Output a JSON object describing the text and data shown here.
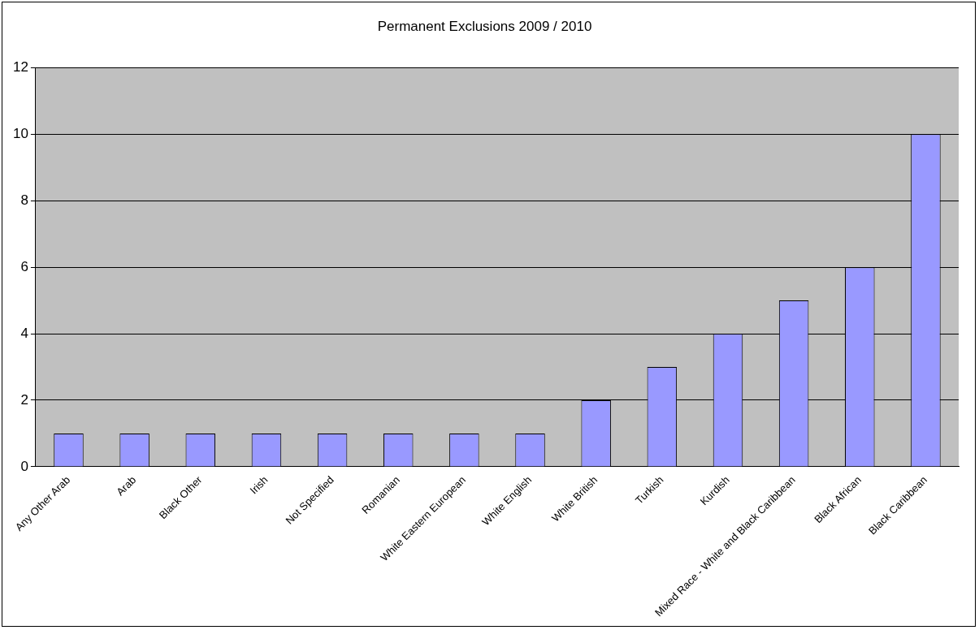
{
  "chart_data": {
    "type": "bar",
    "title": "Permanent Exclusions 2009 / 2010",
    "categories": [
      "Any Other Arab",
      "Arab",
      "Black Other",
      "Irish",
      "Not Specified",
      "Romanian",
      "White Eastern European",
      "White English",
      "White British",
      "Turkish",
      "Kurdish",
      "Mixed Race - White and Black Caribbean",
      "Black African",
      "Black Caribbean"
    ],
    "values": [
      1,
      1,
      1,
      1,
      1,
      1,
      1,
      1,
      2,
      3,
      4,
      5,
      6,
      10
    ],
    "color": "#9999ff",
    "ylim": [
      0,
      12
    ],
    "yticks": [
      0,
      2,
      4,
      6,
      8,
      10,
      12
    ],
    "grid": "y",
    "legend": false
  }
}
